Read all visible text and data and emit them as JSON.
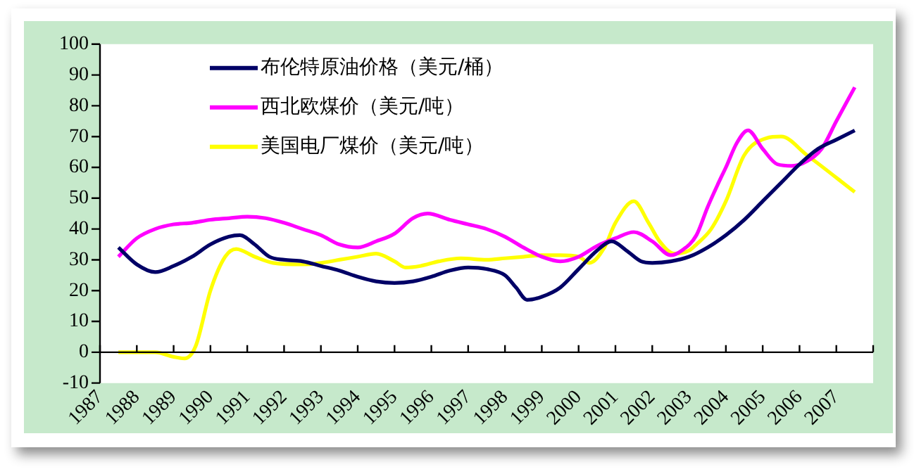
{
  "chart_data": {
    "type": "line",
    "xlim": [
      1987,
      2008
    ],
    "ylim": [
      -10,
      100
    ],
    "xticks": [
      1987,
      1988,
      1989,
      1990,
      1991,
      1992,
      1993,
      1994,
      1995,
      1996,
      1997,
      1998,
      1999,
      2000,
      2001,
      2002,
      2003,
      2004,
      2005,
      2006,
      2007,
      {
        "value": 2008,
        "label": null
      }
    ],
    "yticks": [
      -10,
      0,
      10,
      20,
      30,
      40,
      50,
      60,
      70,
      80,
      90,
      100
    ],
    "legend": "top left",
    "marker": "none",
    "line_style": "solid",
    "series": [
      {
        "name": "布伦特原油价格（美元/桶）",
        "color": "#000066",
        "x": [
          1987.5,
          1988,
          1988.5,
          1989,
          1989.5,
          1990,
          1990.5,
          1990.8,
          1991.2,
          1991.6,
          1992,
          1992.5,
          1993,
          1993.5,
          1994,
          1994.5,
          1995,
          1995.5,
          1996,
          1996.5,
          1997,
          1997.5,
          1998,
          1998.3,
          1998.6,
          1999,
          1999.5,
          2000,
          2000.5,
          2000.9,
          2001.3,
          2001.7,
          2002,
          2002.5,
          2003,
          2003.5,
          2004,
          2004.5,
          2005,
          2005.5,
          2006,
          2006.5,
          2007,
          2007.5
        ],
        "values": [
          34,
          28.5,
          26,
          28,
          31,
          35,
          37.5,
          38,
          35,
          31,
          30,
          29.5,
          28,
          26.5,
          24.5,
          23,
          22.5,
          23,
          24.5,
          26.5,
          27.5,
          27,
          25,
          21,
          17,
          18,
          21,
          27,
          33,
          36,
          33,
          29.5,
          29,
          29.5,
          31,
          34,
          38,
          43,
          49,
          55,
          61,
          66,
          69,
          72
        ]
      },
      {
        "name": "西北欧煤价（美元/吨）",
        "color": "#ff00ff",
        "x": [
          1987.5,
          1988,
          1988.5,
          1989,
          1989.5,
          1990,
          1990.5,
          1991,
          1991.5,
          1992,
          1992.5,
          1993,
          1993.5,
          1994,
          1994.5,
          1995,
          1995.5,
          1995.9,
          1996.5,
          1997,
          1997.5,
          1998,
          1998.5,
          1999,
          1999.5,
          2000,
          2000.5,
          2001,
          2001.5,
          2002,
          2002.5,
          2002.8,
          2003.2,
          2003.5,
          2003.8,
          2004,
          2004.3,
          2004.6,
          2005,
          2005.4,
          2005.8,
          2006.2,
          2006.6,
          2007,
          2007.5
        ],
        "values": [
          31,
          37,
          40,
          41.5,
          42,
          43,
          43.5,
          44,
          43.5,
          42,
          40,
          38,
          35,
          34,
          36,
          38.5,
          43.5,
          45,
          43,
          41.5,
          40,
          37.5,
          34,
          31,
          29.5,
          31,
          34.5,
          37,
          39,
          36,
          31.5,
          33,
          38,
          47,
          55,
          60,
          68,
          72,
          66,
          61,
          60.5,
          62,
          66,
          75,
          86
        ]
      },
      {
        "name": "美国电厂煤价（美元/吨）",
        "color": "#ffff00",
        "x": [
          1987.5,
          1988,
          1988.5,
          1989,
          1989.3,
          1989.6,
          1990,
          1990.4,
          1990.7,
          1991.2,
          1991.7,
          1992.5,
          1993,
          1993.5,
          1994,
          1994.5,
          1995,
          1995.3,
          1995.7,
          1996.2,
          1996.8,
          1997.5,
          1998,
          1998.5,
          1999,
          1999.5,
          2000,
          2000.3,
          2000.7,
          2001,
          2001.5,
          2001.9,
          2002.2,
          2002.6,
          2003,
          2003.2,
          2003.6,
          2004,
          2004.5,
          2005.1,
          2005.5,
          2006.2,
          2007.5
        ],
        "values": [
          0,
          0,
          0,
          -1.5,
          -2,
          2,
          20,
          31,
          33.5,
          31,
          29,
          28.5,
          29,
          30,
          31,
          32,
          29.5,
          27.5,
          28,
          29.5,
          30.5,
          30,
          30.5,
          31,
          31.5,
          31.5,
          31,
          29,
          34,
          42,
          49,
          42,
          36,
          32,
          33,
          35,
          40,
          49,
          64,
          69.5,
          70,
          64,
          52
        ]
      }
    ]
  }
}
